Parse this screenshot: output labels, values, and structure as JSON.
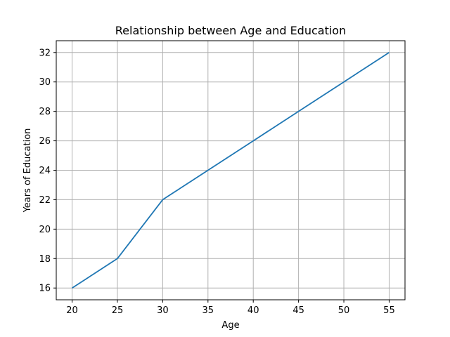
{
  "chart_data": {
    "type": "line",
    "title": "Relationship between Age and Education",
    "xlabel": "Age",
    "ylabel": "Years of Education",
    "x": [
      20,
      25,
      30,
      35,
      40,
      45,
      50,
      55
    ],
    "series": [
      {
        "values": [
          16,
          18,
          22,
          24,
          26,
          28,
          30,
          32
        ],
        "color": "#1f77b4"
      }
    ],
    "xticks": [
      "20",
      "25",
      "30",
      "35",
      "40",
      "45",
      "50",
      "55"
    ],
    "yticks": [
      "16",
      "18",
      "20",
      "22",
      "24",
      "26",
      "28",
      "30",
      "32"
    ],
    "xlim": [
      18.25,
      56.75
    ],
    "ylim": [
      15.2,
      32.8
    ],
    "grid": true,
    "legend": "none"
  }
}
